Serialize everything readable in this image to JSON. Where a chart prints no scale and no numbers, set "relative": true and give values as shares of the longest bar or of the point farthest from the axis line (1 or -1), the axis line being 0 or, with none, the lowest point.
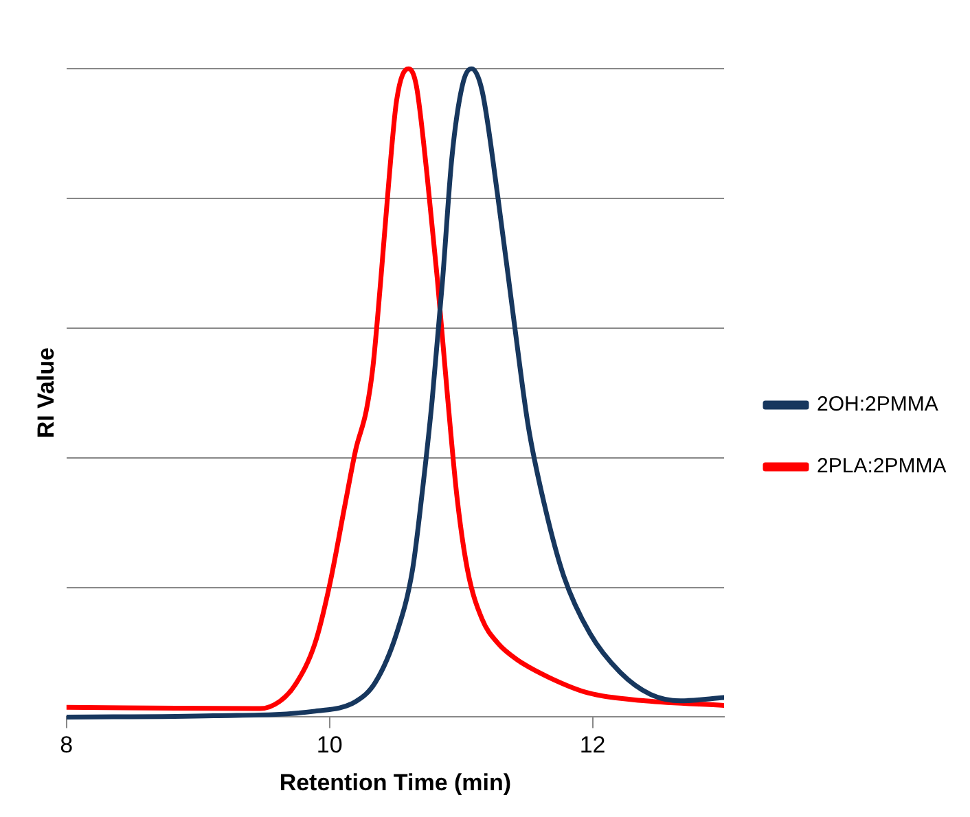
{
  "chart_data": {
    "type": "line",
    "xlabel": "Retention Time (min)",
    "ylabel": "RI Value",
    "relative": true,
    "xlim": [
      8,
      13
    ],
    "xticks": [
      8,
      10,
      12
    ],
    "grid": "y",
    "legend": "right",
    "marker": "none",
    "line_style": "solid",
    "series": [
      {
        "name": "2OH:2PMMA",
        "color": "#17375e",
        "x": [
          8,
          9.12,
          9.89,
          10.2,
          10.35,
          10.51,
          10.63,
          10.7,
          10.78,
          10.86,
          10.93,
          11.01,
          11.08,
          11.16,
          11.28,
          11.4,
          11.51,
          11.63,
          11.78,
          11.98,
          12.21,
          12.44,
          12.67,
          13
        ],
        "values": [
          0,
          0.002,
          0.009,
          0.024,
          0.054,
          0.129,
          0.226,
          0.338,
          0.488,
          0.675,
          0.862,
          0.974,
          1,
          0.966,
          0.802,
          0.615,
          0.45,
          0.331,
          0.218,
          0.129,
          0.069,
          0.035,
          0.025,
          0.03
        ]
      },
      {
        "name": "2PLA:2PMMA",
        "color": "#ff0000",
        "x": [
          8,
          9.47,
          9.62,
          9.74,
          9.89,
          10.0,
          10.12,
          10.2,
          10.28,
          10.33,
          10.39,
          10.45,
          10.51,
          10.6,
          10.66,
          10.74,
          10.82,
          10.9,
          10.97,
          11.05,
          11.16,
          11.28,
          11.43,
          11.67,
          11.97,
          12.4,
          13
        ],
        "values": [
          0.015,
          0.013,
          0.024,
          0.05,
          0.114,
          0.203,
          0.33,
          0.413,
          0.473,
          0.54,
          0.675,
          0.824,
          0.951,
          1,
          0.974,
          0.839,
          0.675,
          0.488,
          0.338,
          0.226,
          0.151,
          0.114,
          0.088,
          0.061,
          0.037,
          0.025,
          0.018
        ]
      }
    ]
  }
}
